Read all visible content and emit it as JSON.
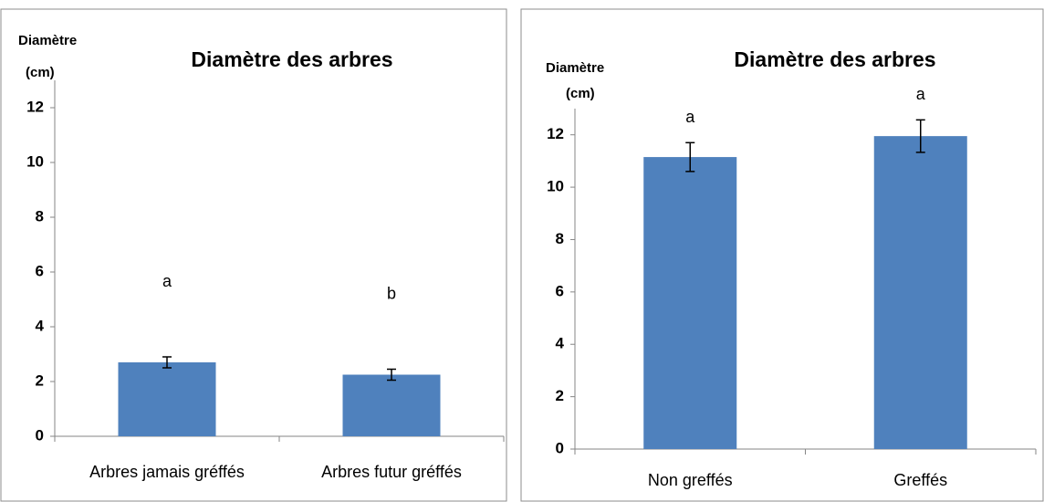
{
  "chart_data": [
    {
      "type": "bar",
      "title": "Diamètre des arbres",
      "y_label": [
        "Diamètre",
        "(cm)"
      ],
      "categories": [
        "Arbres jamais gréffés",
        "Arbres futur gréffés"
      ],
      "values": [
        2.7,
        2.25
      ],
      "errors": [
        0.2,
        0.2
      ],
      "letters": [
        "a",
        "b"
      ],
      "color": "#4f81bd",
      "ylim": [
        0,
        13
      ],
      "yticks": [
        0,
        2,
        4,
        6,
        8,
        10,
        12
      ]
    },
    {
      "type": "bar",
      "title": "Diamètre des arbres",
      "y_label": [
        "Diamètre",
        "(cm)"
      ],
      "categories": [
        "Non greffés",
        "Greffés"
      ],
      "values": [
        11.15,
        11.95
      ],
      "errors": [
        0.55,
        0.62
      ],
      "letters": [
        "a",
        "a"
      ],
      "color": "#4f81bd",
      "ylim": [
        0,
        13
      ],
      "yticks": [
        0,
        2,
        4,
        6,
        8,
        10,
        12
      ]
    }
  ]
}
